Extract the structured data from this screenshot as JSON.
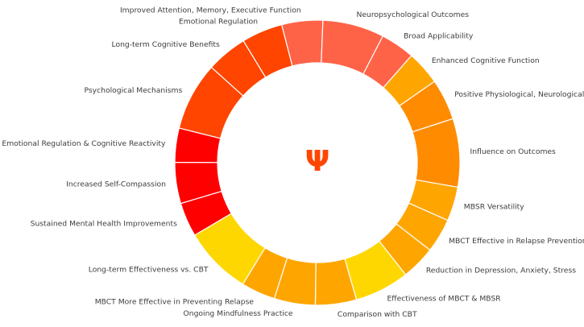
{
  "chart_data": {
    "type": "donut",
    "title": "",
    "center_label": "Ψ",
    "center_color": "#ff4500",
    "start_angle_deg": 18,
    "direction": "clockwise",
    "segments": [
      {
        "label": "Influence on Outcomes",
        "value": 10,
        "color": "#ff8c00"
      },
      {
        "label": "MBSR Versatility",
        "value": 5,
        "color": "#ffa500"
      },
      {
        "label": "MBCT Effective in Relapse Prevention",
        "value": 5,
        "color": "#ffa500"
      },
      {
        "label": "Reduction in Depression, Anxiety, Stress",
        "value": 5,
        "color": "#ffa500"
      },
      {
        "label": "Effectiveness of MBCT & MBSR",
        "value": 8,
        "color": "#ffd700"
      },
      {
        "label": "Comparison with CBT",
        "value": 6,
        "color": "#ffa500"
      },
      {
        "label": "Ongoing Mindfulness Practice",
        "value": 6,
        "color": "#ffa500"
      },
      {
        "label": "MBCT More Effective in Preventing Relapse",
        "value": 5,
        "color": "#ffa500"
      },
      {
        "label": "Long-term Effectiveness vs. CBT",
        "value": 10,
        "color": "#ffd700"
      },
      {
        "label": "Sustained Mental Health Improvements",
        "value": 5,
        "color": "#ff0000"
      },
      {
        "label": "Increased Self-Compassion",
        "value": 6,
        "color": "#ff0000"
      },
      {
        "label": "Emotional Regulation & Cognitive Reactivity",
        "value": 5,
        "color": "#ff0000"
      },
      {
        "label": "Psychological Mechanisms",
        "value": 10,
        "color": "#ff4500"
      },
      {
        "label": "Long-term Cognitive Benefits",
        "value": 6,
        "color": "#ff4500"
      },
      {
        "label": "Emotional Regulation",
        "value": 6,
        "color": "#ff4500"
      },
      {
        "label": "Improved Attention, Memory, Executive Function",
        "value": 6,
        "color": "#ff6347"
      },
      {
        "label": "Neuropsychological Outcomes",
        "value": 9,
        "color": "#ff6347"
      },
      {
        "label": "Broad Applicability",
        "value": 5,
        "color": "#ff6347"
      },
      {
        "label": "Enhanced Cognitive Function",
        "value": 5,
        "color": "#ffa500"
      },
      {
        "label": "Positive Physiological, Neurological, and Psychological Effects",
        "value": 6,
        "color": "#ff8c00"
      }
    ]
  }
}
